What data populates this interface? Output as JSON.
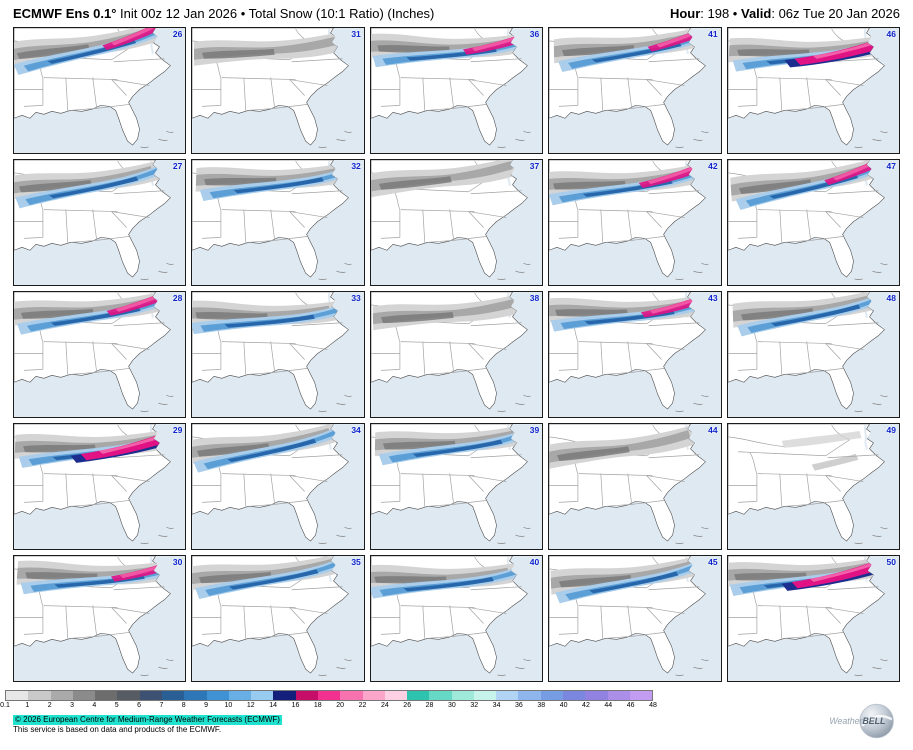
{
  "header": {
    "model_bold": "ECMWF Ens 0.1°",
    "title_rest": " Init 00z 12 Jan 2026 • Total Snow (10:1 Ratio) (Inches)",
    "hour_label": "Hour",
    "hour_rest": ": 198 • ",
    "valid_label": "Valid",
    "valid_rest": ": 06z Tue 20 Jan 2026"
  },
  "panels": [
    {
      "member": "26",
      "pattern": "blue-pink"
    },
    {
      "member": "31",
      "pattern": "gray"
    },
    {
      "member": "36",
      "pattern": "blue-pink"
    },
    {
      "member": "41",
      "pattern": "blue-pink"
    },
    {
      "member": "46",
      "pattern": "heavy-pink"
    },
    {
      "member": "27",
      "pattern": "blue"
    },
    {
      "member": "32",
      "pattern": "blue"
    },
    {
      "member": "37",
      "pattern": "gray"
    },
    {
      "member": "42",
      "pattern": "blue-pink"
    },
    {
      "member": "47",
      "pattern": "blue-pink"
    },
    {
      "member": "28",
      "pattern": "blue-pink"
    },
    {
      "member": "33",
      "pattern": "blue"
    },
    {
      "member": "38",
      "pattern": "gray"
    },
    {
      "member": "43",
      "pattern": "blue-pink"
    },
    {
      "member": "48",
      "pattern": "blue"
    },
    {
      "member": "29",
      "pattern": "heavy-pink"
    },
    {
      "member": "34",
      "pattern": "blue"
    },
    {
      "member": "39",
      "pattern": "blue"
    },
    {
      "member": "44",
      "pattern": "gray"
    },
    {
      "member": "49",
      "pattern": "light"
    },
    {
      "member": "30",
      "pattern": "blue-pink"
    },
    {
      "member": "35",
      "pattern": "blue"
    },
    {
      "member": "40",
      "pattern": "blue"
    },
    {
      "member": "45",
      "pattern": "blue"
    },
    {
      "member": "50",
      "pattern": "heavy-pink"
    }
  ],
  "colorbar": {
    "ticks": [
      "0.1",
      "1",
      "2",
      "3",
      "4",
      "5",
      "6",
      "7",
      "8",
      "9",
      "10",
      "12",
      "14",
      "16",
      "18",
      "20",
      "22",
      "24",
      "26",
      "28",
      "30",
      "32",
      "34",
      "36",
      "38",
      "40",
      "42",
      "44",
      "46",
      "48"
    ],
    "colors": [
      "#e7e7e7",
      "#c9c9c9",
      "#aaaaaa",
      "#8b8b8b",
      "#6d6d6d",
      "#565b64",
      "#3d5273",
      "#2a5f96",
      "#2d77b8",
      "#3f92d4",
      "#67afe4",
      "#97cbf0",
      "#131f7b",
      "#c60e69",
      "#f23090",
      "#f772af",
      "#fba5cb",
      "#fdd0e4",
      "#2ec3ae",
      "#66d9c6",
      "#9fe9da",
      "#c8f3ea",
      "#b1d4f4",
      "#8fb6ec",
      "#769ce4",
      "#7b87de",
      "#9182e1",
      "#aa8ee8",
      "#c29cf0"
    ]
  },
  "footer": {
    "line1": "© 2026 European Centre for Medium-Range Weather Forecasts (ECMWF)",
    "line2": "This service is based on data and products of the ECMWF.",
    "logo_weather": "Weather",
    "logo_bell": "BELL"
  },
  "colors": {
    "ocean": "#dfe9f2",
    "land": "#ffffff",
    "state_line": "#a2a2a2",
    "member": "#1026cc",
    "highlight": "#1fe3cf",
    "sn_gray1": "#d4d4d4",
    "sn_gray2": "#a8a8a8",
    "sn_gray3": "#7a7a7a",
    "sn_blue1": "#a9cdea",
    "sn_blue2": "#5b9fd6",
    "sn_blue3": "#2766ab",
    "sn_navy": "#1b2d8f",
    "sn_mag": "#e01284",
    "sn_pink": "#f45fa9"
  }
}
